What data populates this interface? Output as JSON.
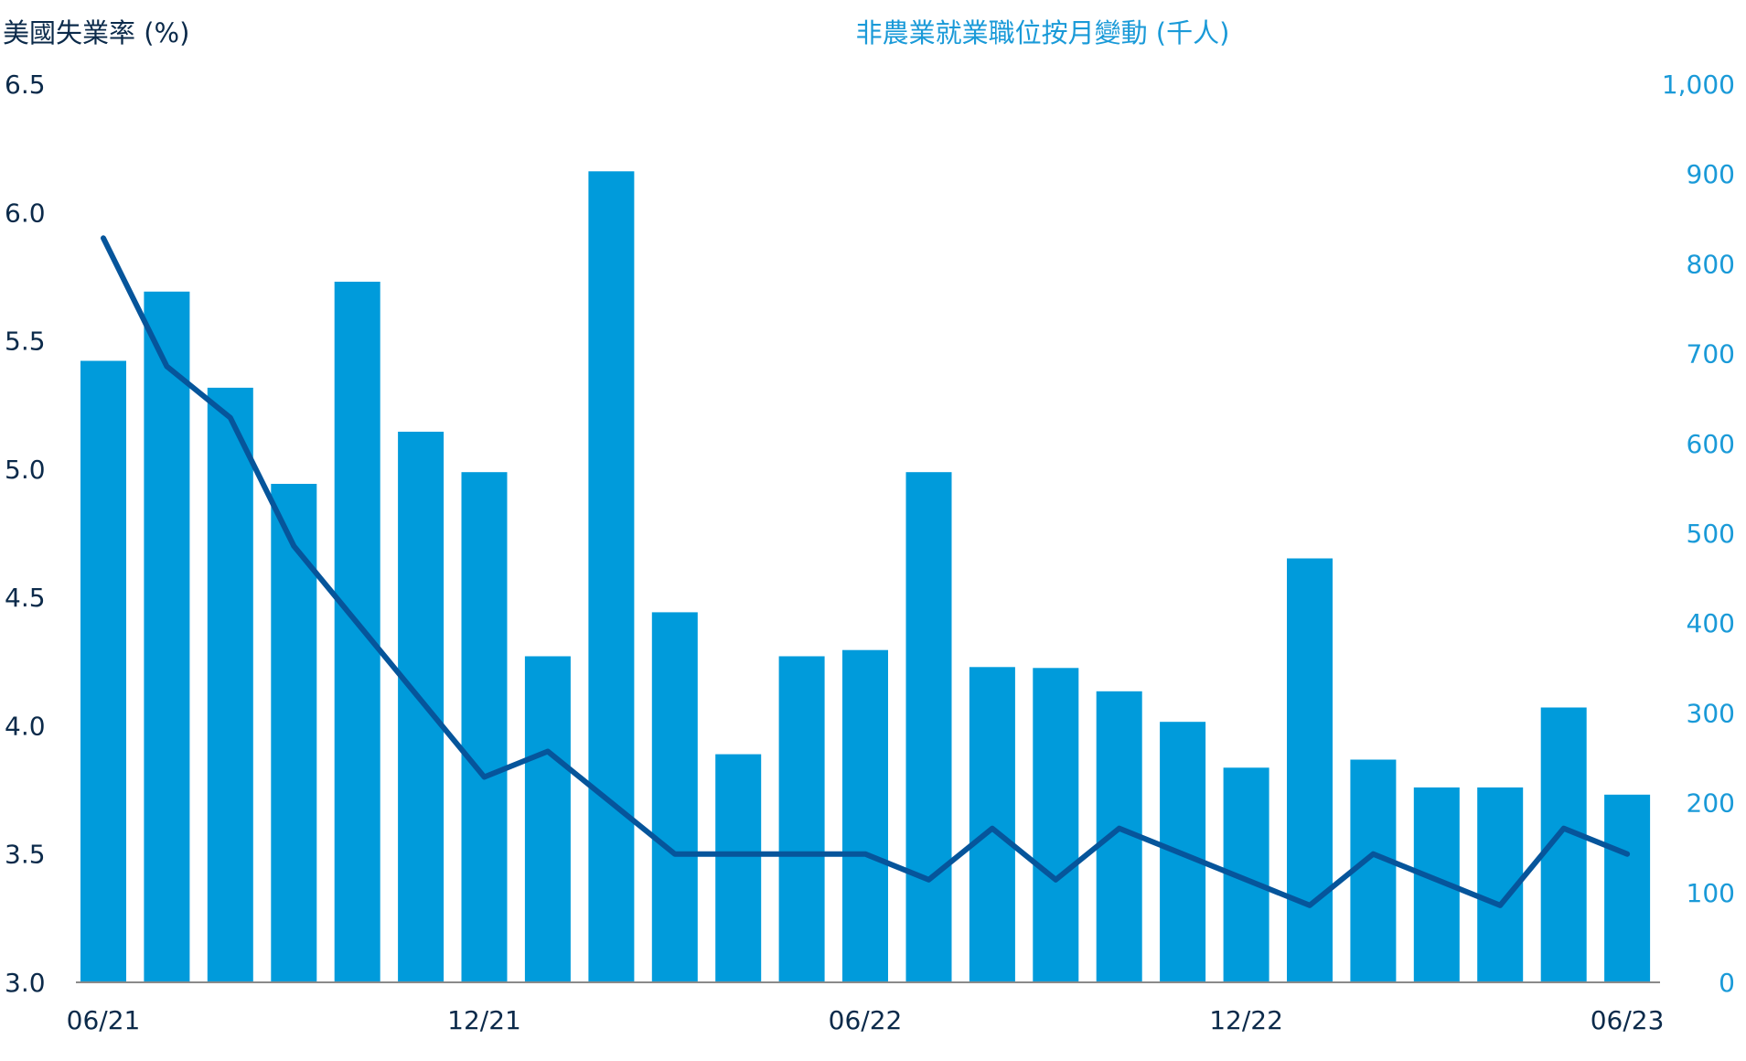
{
  "chart_data": {
    "type": "bar+line",
    "left_axis": {
      "label": "美國失業率 (%)",
      "range": [
        3.0,
        6.5
      ],
      "ticks": [
        "3.0",
        "3.5",
        "4.0",
        "4.5",
        "5.0",
        "5.5",
        "6.0",
        "6.5"
      ]
    },
    "right_axis": {
      "label": "非農業就業職位按月變動 (千人)",
      "range": [
        0,
        1000
      ],
      "ticks": [
        "0",
        "100",
        "200",
        "300",
        "400",
        "500",
        "600",
        "700",
        "800",
        "900",
        "1,000"
      ]
    },
    "x_tick_labels": [
      "06/21",
      "12/21",
      "06/22",
      "12/22",
      "06/23"
    ],
    "x_tick_indices": [
      0,
      6,
      12,
      18,
      24
    ],
    "bars": {
      "axis": "right",
      "color": "#009bdb",
      "values": [
        692,
        769,
        662,
        555,
        780,
        613,
        568,
        363,
        903,
        412,
        254,
        363,
        370,
        568,
        351,
        350,
        324,
        290,
        239,
        472,
        248,
        217,
        217,
        306,
        209
      ]
    },
    "line": {
      "axis": "left",
      "color": "#06559b",
      "values": [
        5.9,
        5.4,
        5.2,
        4.7,
        4.4,
        4.1,
        3.8,
        3.9,
        3.7,
        3.5,
        3.5,
        3.5,
        3.5,
        3.4,
        3.6,
        3.4,
        3.6,
        3.5,
        3.4,
        3.3,
        3.5,
        3.4,
        3.3,
        3.6,
        3.5
      ]
    },
    "grid": false
  }
}
